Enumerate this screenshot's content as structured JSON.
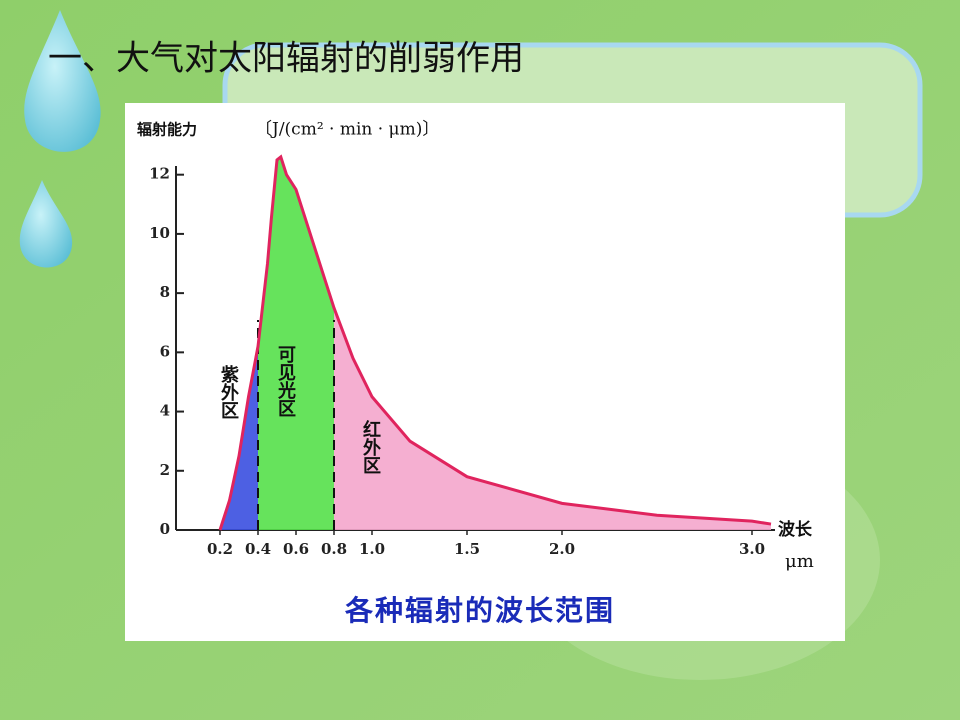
{
  "slide_title": "一、大气对太阳辐射的削弱作用",
  "chart_data": {
    "type": "area",
    "y_label": "辐射能力",
    "y_unit": "〔J/(cm² · min · μm)〕",
    "x_label": "波长",
    "x_unit": "μm",
    "caption": "各种辐射的波长范围",
    "x": [
      0.2,
      0.25,
      0.3,
      0.35,
      0.4,
      0.45,
      0.47,
      0.5,
      0.52,
      0.55,
      0.6,
      0.7,
      0.8,
      0.9,
      1.0,
      1.2,
      1.5,
      2.0,
      2.5,
      3.0,
      3.1
    ],
    "values": [
      0,
      1,
      2.5,
      4.5,
      6.2,
      9,
      10.5,
      12.5,
      12.6,
      12,
      11.5,
      9.5,
      7.5,
      5.8,
      4.5,
      3,
      1.8,
      0.9,
      0.5,
      0.3,
      0.2
    ],
    "color": "#e0245e",
    "regions": [
      {
        "name": "紫外区",
        "from": 0.2,
        "to": 0.4,
        "color": "#3a4fe0"
      },
      {
        "name": "可见光区",
        "from": 0.4,
        "to": 0.8,
        "color": "#55e04a"
      },
      {
        "name": "红外区",
        "from": 0.8,
        "to": 3.1,
        "color": "#f4a6cc"
      }
    ],
    "xlim": [
      0,
      3.1
    ],
    "ylim": [
      0,
      12.8
    ],
    "xticks": [
      0.2,
      0.4,
      0.6,
      0.8,
      {
        "value": 1.0,
        "label": "1.0"
      },
      1.5,
      {
        "value": 2.0,
        "label": "2.0"
      },
      {
        "value": 3.0,
        "label": "3.0"
      }
    ],
    "yticks": [
      0,
      2,
      4,
      6,
      8,
      10,
      12
    ]
  }
}
